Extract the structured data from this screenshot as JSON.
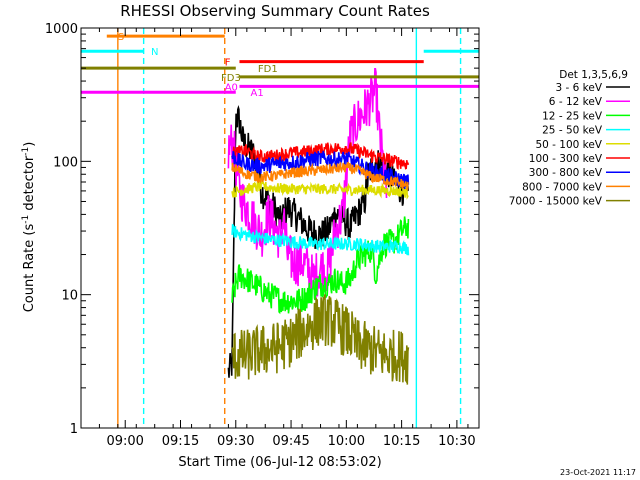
{
  "chart_data": {
    "type": "line",
    "title": "RHESSI Observing Summary Count Rates",
    "xlabel": "Start Time (06-Jul-12 08:53:02)",
    "ylabel_parts": [
      "Count Rate (s",
      "-1",
      " detector",
      "-1",
      ")"
    ],
    "yscale": "log",
    "ylim": [
      1,
      1000
    ],
    "xlim_min": [
      -5,
      103
    ],
    "x_ticks": [
      {
        "min": 7,
        "label": "09:00"
      },
      {
        "min": 22,
        "label": "09:15"
      },
      {
        "min": 37,
        "label": "09:30"
      },
      {
        "min": 52,
        "label": "09:45"
      },
      {
        "min": 67,
        "label": "10:00"
      },
      {
        "min": 82,
        "label": "10:15"
      },
      {
        "min": 97,
        "label": "10:30"
      }
    ],
    "y_ticks": [
      {
        "value": 1,
        "label": "1"
      },
      {
        "value": 10,
        "label": "10"
      },
      {
        "value": 100,
        "label": "100"
      },
      {
        "value": 1000,
        "label": "1000"
      }
    ],
    "legend": {
      "title": "Det 1,3,5,6,9",
      "position": "right",
      "entries": [
        {
          "label": "3 - 6 keV",
          "color": "#000000"
        },
        {
          "label": "6 - 12 keV",
          "color": "#ff00ff"
        },
        {
          "label": "12 - 25 keV",
          "color": "#00ff00"
        },
        {
          "label": "25 - 50 keV",
          "color": "#00ffff"
        },
        {
          "label": "50 - 100 keV",
          "color": "#dddd00"
        },
        {
          "label": "100 - 300 keV",
          "color": "#ff0000"
        },
        {
          "label": "300 - 800 keV",
          "color": "#0000ff"
        },
        {
          "label": "800 - 7000 keV",
          "color": "#ff8000"
        },
        {
          "label": "7000 - 15000 keV",
          "color": "#808000"
        }
      ]
    },
    "flag_bars": [
      {
        "label": "S",
        "color": "#ff8000",
        "y": 870,
        "x0": 2,
        "x1": 34,
        "label_x": 5
      },
      {
        "label": "N",
        "color": "#00ffff",
        "y": 670,
        "x0": -5,
        "x1": 12,
        "label_x": 14
      },
      {
        "label": "N",
        "color": "#00ffff",
        "y": 670,
        "x0": 88,
        "x1": 103,
        "label_x": null
      },
      {
        "label": "F",
        "color": "#ff0000",
        "y": 560,
        "x0": 38,
        "x1": 88,
        "label_x": 34
      },
      {
        "label": "FD1",
        "color": "#808000",
        "y": 500,
        "x0": -5,
        "x1": 37,
        "label_x": 43
      },
      {
        "label": "FD3",
        "color": "#808000",
        "y": 430,
        "x0": 38,
        "x1": 103,
        "label_x": 33
      },
      {
        "label": "A0",
        "color": "#ff00ff",
        "y": 365,
        "x0": 38,
        "x1": 103,
        "label_x": 34
      },
      {
        "label": "A1",
        "color": "#ff00ff",
        "y": 330,
        "x0": -5,
        "x1": 37,
        "label_x": 41
      }
    ],
    "vlines": [
      {
        "x": 5,
        "color": "#ff8000",
        "style": "solid"
      },
      {
        "x": 12,
        "color": "#00ffff",
        "style": "dashed"
      },
      {
        "x": 34,
        "color": "#ff8000",
        "style": "dashed"
      },
      {
        "x": 86,
        "color": "#00ffff",
        "style": "solid"
      },
      {
        "x": 98,
        "color": "#00ffff",
        "style": "dashed"
      }
    ],
    "series": [
      {
        "name": "3 - 6 keV",
        "color": "#000000",
        "noise": 0.12,
        "points": [
          [
            35,
            2.6
          ],
          [
            36,
            3
          ],
          [
            37,
            220
          ],
          [
            38,
            200
          ],
          [
            39,
            140
          ],
          [
            40,
            130
          ],
          [
            42,
            110
          ],
          [
            44,
            60
          ],
          [
            46,
            50
          ],
          [
            48,
            42
          ],
          [
            49,
            35
          ],
          [
            51,
            45
          ],
          [
            53,
            40
          ],
          [
            55,
            35
          ],
          [
            57,
            30
          ],
          [
            60,
            28
          ],
          [
            62,
            30
          ],
          [
            64,
            40
          ],
          [
            66,
            38
          ],
          [
            68,
            32
          ],
          [
            70,
            40
          ],
          [
            72,
            50
          ],
          [
            73,
            80
          ],
          [
            75,
            100
          ],
          [
            77,
            90
          ],
          [
            79,
            80
          ],
          [
            80,
            68
          ],
          [
            82,
            62
          ],
          [
            84,
            55
          ]
        ]
      },
      {
        "name": "6 - 12 keV",
        "color": "#ff00ff",
        "noise": 0.18,
        "points": [
          [
            35,
            120
          ],
          [
            36,
            140
          ],
          [
            37,
            100
          ],
          [
            38,
            60
          ],
          [
            39,
            50
          ],
          [
            40,
            45
          ],
          [
            41,
            40
          ],
          [
            42,
            35
          ],
          [
            44,
            28
          ],
          [
            46,
            40
          ],
          [
            48,
            30
          ],
          [
            49,
            26
          ],
          [
            50,
            38
          ],
          [
            51,
            20
          ],
          [
            53,
            17
          ],
          [
            55,
            18
          ],
          [
            57,
            15
          ],
          [
            58,
            13
          ],
          [
            60,
            16
          ],
          [
            62,
            15
          ],
          [
            63,
            20
          ],
          [
            64,
            30
          ],
          [
            66,
            40
          ],
          [
            68,
            150
          ],
          [
            70,
            200
          ],
          [
            72,
            240
          ],
          [
            74,
            300
          ],
          [
            75,
            340
          ],
          [
            76,
            160
          ],
          [
            78,
            55
          ]
        ]
      },
      {
        "name": "12 - 25 keV",
        "color": "#00ff00",
        "noise": 0.1,
        "points": [
          [
            36,
            9
          ],
          [
            37,
            12
          ],
          [
            38,
            14
          ],
          [
            40,
            13
          ],
          [
            42,
            12
          ],
          [
            44,
            11
          ],
          [
            46,
            10
          ],
          [
            50,
            9
          ],
          [
            54,
            9
          ],
          [
            56,
            9.5
          ],
          [
            58,
            11
          ],
          [
            60,
            12
          ],
          [
            62,
            12
          ],
          [
            64,
            13
          ],
          [
            66,
            12
          ],
          [
            68,
            13
          ],
          [
            70,
            18
          ],
          [
            72,
            20
          ],
          [
            74,
            22
          ],
          [
            75,
            14
          ],
          [
            77,
            24
          ],
          [
            80,
            25
          ],
          [
            82,
            30
          ],
          [
            84,
            33
          ]
        ]
      },
      {
        "name": "25 - 50 keV",
        "color": "#00ffff",
        "noise": 0.05,
        "points": [
          [
            36,
            30
          ],
          [
            40,
            28
          ],
          [
            46,
            26
          ],
          [
            52,
            25
          ],
          [
            58,
            24
          ],
          [
            64,
            24
          ],
          [
            70,
            24
          ],
          [
            76,
            23
          ],
          [
            82,
            23
          ],
          [
            84,
            22
          ]
        ]
      },
      {
        "name": "50 - 100 keV",
        "color": "#dddd00",
        "noise": 0.04,
        "points": [
          [
            36,
            58
          ],
          [
            40,
            62
          ],
          [
            44,
            65
          ],
          [
            48,
            63
          ],
          [
            52,
            62
          ],
          [
            56,
            62
          ],
          [
            62,
            62
          ],
          [
            68,
            61
          ],
          [
            74,
            61
          ],
          [
            80,
            60
          ],
          [
            84,
            58
          ]
        ]
      },
      {
        "name": "100 - 300 keV",
        "color": "#ff0000",
        "noise": 0.05,
        "points": [
          [
            36,
            115
          ],
          [
            40,
            120
          ],
          [
            42,
            110
          ],
          [
            44,
            108
          ],
          [
            48,
            110
          ],
          [
            52,
            115
          ],
          [
            56,
            118
          ],
          [
            60,
            122
          ],
          [
            64,
            125
          ],
          [
            67,
            126
          ],
          [
            70,
            120
          ],
          [
            74,
            110
          ],
          [
            77,
            105
          ],
          [
            80,
            100
          ],
          [
            84,
            96
          ]
        ]
      },
      {
        "name": "300 - 800 keV",
        "color": "#0000ff",
        "noise": 0.06,
        "points": [
          [
            36,
            110
          ],
          [
            38,
            100
          ],
          [
            40,
            95
          ],
          [
            44,
            92
          ],
          [
            48,
            96
          ],
          [
            52,
            98
          ],
          [
            56,
            102
          ],
          [
            60,
            105
          ],
          [
            64,
            103
          ],
          [
            67,
            105
          ],
          [
            70,
            95
          ],
          [
            74,
            85
          ],
          [
            78,
            78
          ],
          [
            82,
            72
          ],
          [
            84,
            70
          ]
        ]
      },
      {
        "name": "800 - 7000 keV",
        "color": "#ff8000",
        "noise": 0.04,
        "points": [
          [
            36,
            90
          ],
          [
            38,
            85
          ],
          [
            40,
            80
          ],
          [
            44,
            76
          ],
          [
            48,
            78
          ],
          [
            52,
            82
          ],
          [
            56,
            84
          ],
          [
            60,
            86
          ],
          [
            64,
            88
          ],
          [
            67,
            90
          ],
          [
            70,
            86
          ],
          [
            74,
            76
          ],
          [
            78,
            72
          ],
          [
            82,
            68
          ],
          [
            84,
            65
          ]
        ]
      },
      {
        "name": "7000 - 15000 keV",
        "color": "#808000",
        "noise": 0.2,
        "points": [
          [
            36,
            3.5
          ],
          [
            40,
            3.5
          ],
          [
            44,
            3.8
          ],
          [
            48,
            4
          ],
          [
            52,
            4.5
          ],
          [
            54,
            5
          ],
          [
            56,
            5.5
          ],
          [
            58,
            6
          ],
          [
            60,
            6.5
          ],
          [
            62,
            6.5
          ],
          [
            64,
            6
          ],
          [
            66,
            5.5
          ],
          [
            68,
            5
          ],
          [
            70,
            4.2
          ],
          [
            74,
            3.8
          ],
          [
            78,
            3.5
          ],
          [
            82,
            3.5
          ],
          [
            84,
            3.3
          ]
        ]
      }
    ]
  },
  "footer": {
    "date_stamp": "23-Oct-2021 11:17"
  }
}
